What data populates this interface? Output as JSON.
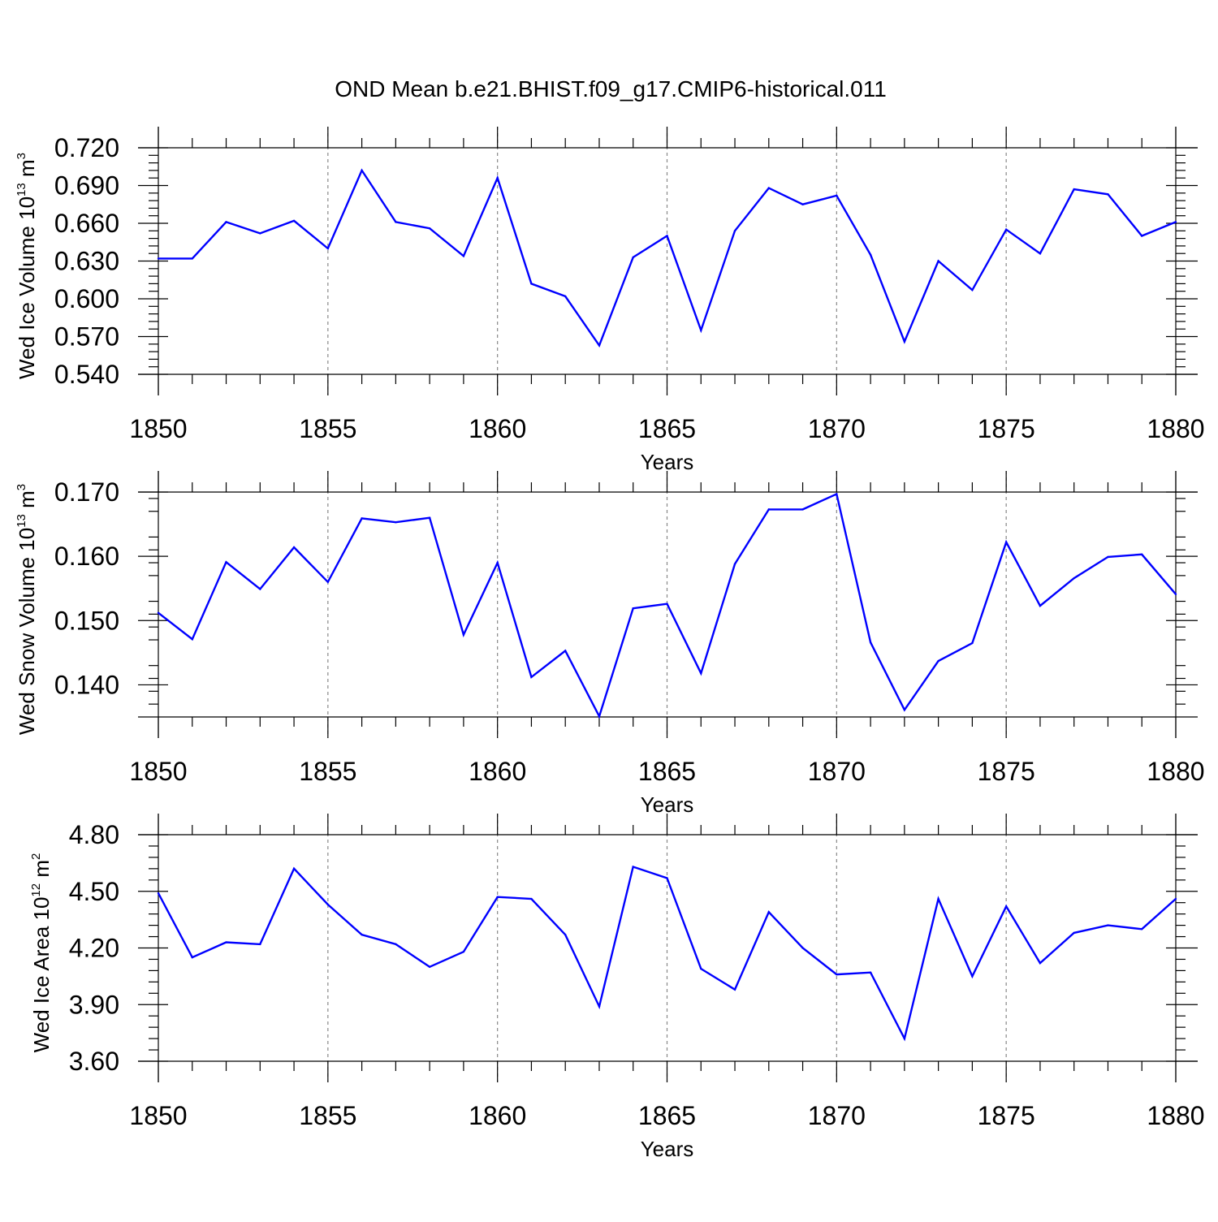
{
  "chart_data": {
    "title": "OND Mean b.e21.BHIST.f09_g17.CMIP6-historical.011",
    "type": "line",
    "line_color": "#0000ff",
    "panels": [
      {
        "type": "line",
        "ylabel": {
          "base": "Wed Ice Volume 10",
          "exp": "13",
          "unit": " m",
          "unit_exp": "3"
        },
        "xlabel": "Years",
        "xlim": [
          1850,
          1880
        ],
        "ylim": [
          0.54,
          0.72
        ],
        "yticks": [
          "0.720",
          "0.690",
          "0.660",
          "0.630",
          "0.600",
          "0.570",
          "0.540"
        ],
        "xticks": [
          "1850",
          "1855",
          "1860",
          "1865",
          "1870",
          "1875",
          "1880"
        ],
        "x": [
          1850,
          1851,
          1852,
          1853,
          1854,
          1855,
          1856,
          1857,
          1858,
          1859,
          1860,
          1861,
          1862,
          1863,
          1864,
          1865,
          1866,
          1867,
          1868,
          1869,
          1870,
          1871,
          1872,
          1873,
          1874,
          1875,
          1876,
          1877,
          1878,
          1879,
          1880
        ],
        "values": [
          0.632,
          0.632,
          0.661,
          0.652,
          0.662,
          0.64,
          0.702,
          0.661,
          0.656,
          0.634,
          0.696,
          0.612,
          0.602,
          0.563,
          0.633,
          0.65,
          0.575,
          0.654,
          0.688,
          0.675,
          0.682,
          0.635,
          0.566,
          0.63,
          0.607,
          0.655,
          0.636,
          0.687,
          0.683,
          0.65,
          0.661
        ]
      },
      {
        "type": "line",
        "ylabel": {
          "base": "Wed Snow Volume 10",
          "exp": "13",
          "unit": " m",
          "unit_exp": "3"
        },
        "xlabel": "Years",
        "xlim": [
          1850,
          1880
        ],
        "ylim": [
          0.135,
          0.17
        ],
        "yticks": [
          "0.170",
          "0.160",
          "0.150",
          "0.140"
        ],
        "xticks": [
          "1850",
          "1855",
          "1860",
          "1865",
          "1870",
          "1875",
          "1880"
        ],
        "x": [
          1850,
          1851,
          1852,
          1853,
          1854,
          1855,
          1856,
          1857,
          1858,
          1859,
          1860,
          1861,
          1862,
          1863,
          1864,
          1865,
          1866,
          1867,
          1868,
          1869,
          1870,
          1871,
          1872,
          1873,
          1874,
          1875,
          1876,
          1877,
          1878,
          1879,
          1880
        ],
        "values": [
          0.1512,
          0.1471,
          0.1591,
          0.1549,
          0.1614,
          0.156,
          0.1659,
          0.1653,
          0.166,
          0.1478,
          0.159,
          0.1412,
          0.1453,
          0.1351,
          0.1519,
          0.1526,
          0.1418,
          0.1588,
          0.1673,
          0.1673,
          0.1697,
          0.1466,
          0.1361,
          0.1437,
          0.1465,
          0.1622,
          0.1523,
          0.1566,
          0.1599,
          0.1603,
          0.1541
        ]
      },
      {
        "type": "line",
        "ylabel": {
          "base": "Wed Ice Area 10",
          "exp": "12",
          "unit": " m",
          "unit_exp": "2"
        },
        "xlabel": "Years",
        "xlim": [
          1850,
          1880
        ],
        "ylim": [
          3.6,
          4.8
        ],
        "yticks": [
          "4.80",
          "4.50",
          "4.20",
          "3.90",
          "3.60"
        ],
        "xticks": [
          "1850",
          "1855",
          "1860",
          "1865",
          "1870",
          "1875",
          "1880"
        ],
        "x": [
          1850,
          1851,
          1852,
          1853,
          1854,
          1855,
          1856,
          1857,
          1858,
          1859,
          1860,
          1861,
          1862,
          1863,
          1864,
          1865,
          1866,
          1867,
          1868,
          1869,
          1870,
          1871,
          1872,
          1873,
          1874,
          1875,
          1876,
          1877,
          1878,
          1879,
          1880
        ],
        "values": [
          4.49,
          4.15,
          4.23,
          4.22,
          4.62,
          4.43,
          4.27,
          4.22,
          4.1,
          4.18,
          4.47,
          4.46,
          4.27,
          3.89,
          4.63,
          4.57,
          4.09,
          3.98,
          4.39,
          4.2,
          4.06,
          4.07,
          3.72,
          4.46,
          4.05,
          4.42,
          4.12,
          4.28,
          4.32,
          4.3,
          4.46
        ]
      }
    ]
  }
}
